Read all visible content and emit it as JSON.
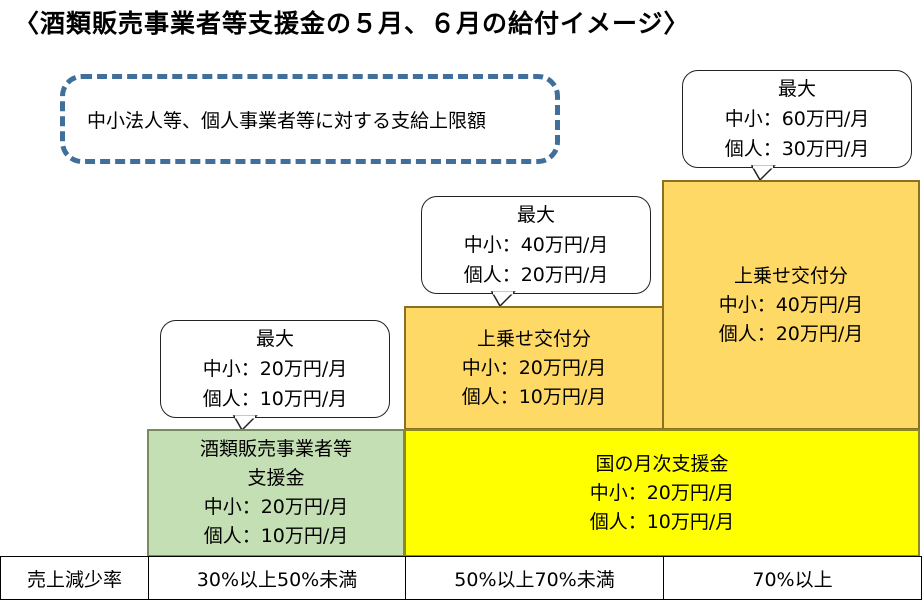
{
  "title": "〈酒類販売事業者等支援金の５月、６月の給付イメージ〉",
  "legend": "中小法人等、個人事業者等に対する支給上限額",
  "callouts": {
    "c30": {
      "line1": "最大",
      "line2": "中小：20万円/月",
      "line3": "個人：10万円/月"
    },
    "c50": {
      "line1": "最大",
      "line2": "中小：40万円/月",
      "line3": "個人：20万円/月"
    },
    "c70": {
      "line1": "最大",
      "line2": "中小：60万円/月",
      "line3": "個人：30万円/月"
    }
  },
  "blocks": {
    "shurui": {
      "line1": "酒類販売事業者等",
      "line2": "支援金",
      "line3": "中小：20万円/月",
      "line4": "個人：10万円/月"
    },
    "kuni": {
      "line1": "国の月次支援金",
      "line2": "中小：20万円/月",
      "line3": "個人：10万円/月"
    },
    "uwanose1": {
      "line1": "上乗せ交付分",
      "line2": "中小：20万円/月",
      "line3": "個人：10万円/月"
    },
    "uwanose2": {
      "line1": "上乗せ交付分",
      "line2": "中小：40万円/月",
      "line3": "個人：20万円/月"
    }
  },
  "table": {
    "label": "売上減少率",
    "cols": [
      "30%以上50%未満",
      "50%以上70%未満",
      "70%以上"
    ]
  },
  "colors": {
    "green": "#c5dfb4",
    "yellow": "#ffff00",
    "orange": "#ffd966",
    "legend_border": "#3f6f9a"
  }
}
